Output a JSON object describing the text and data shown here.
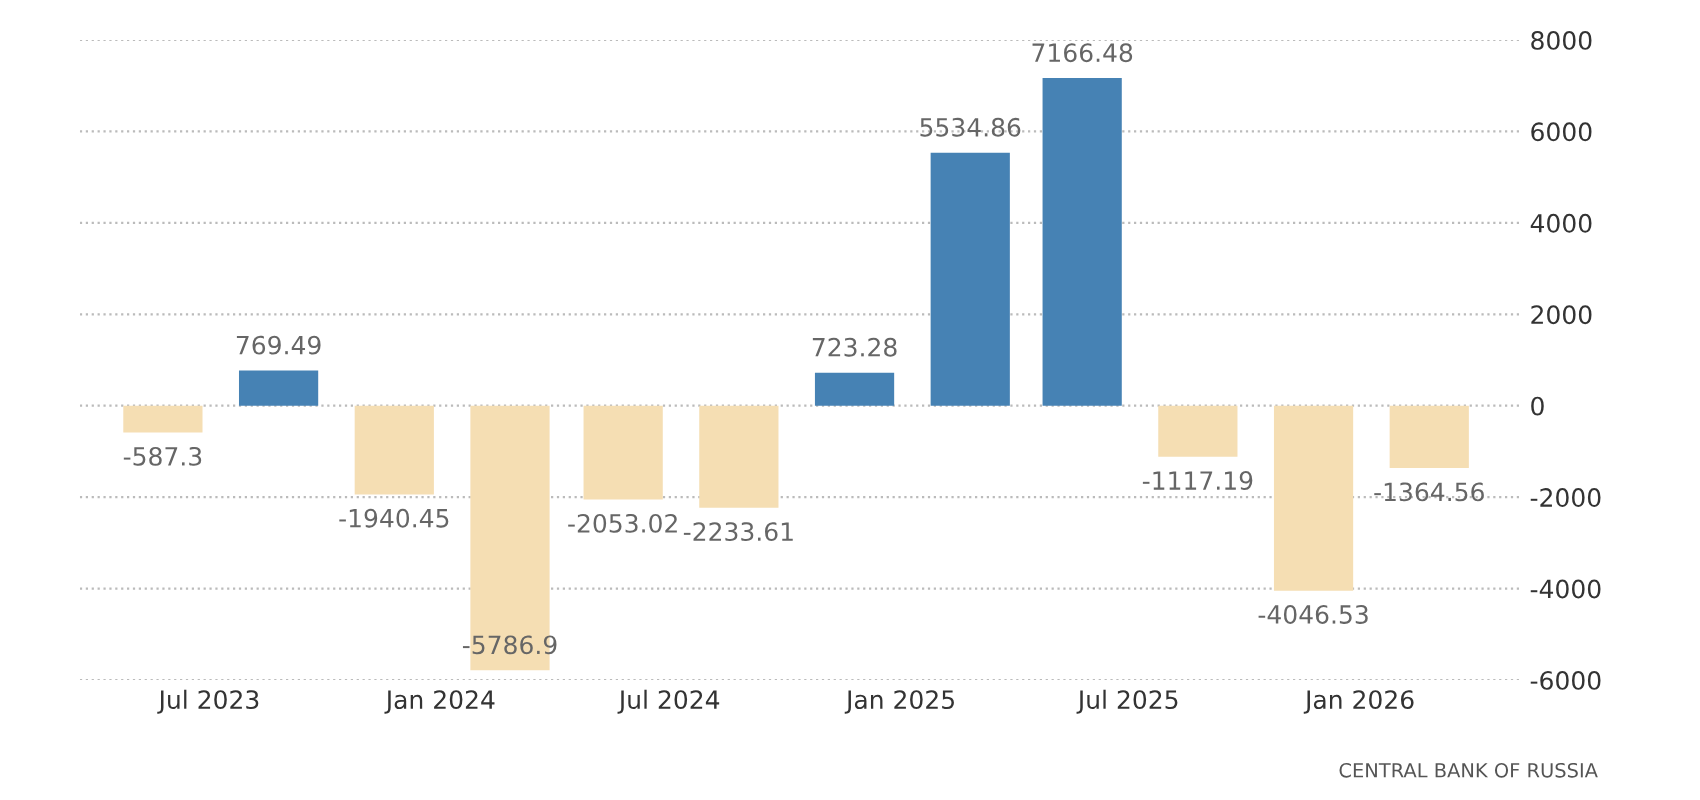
{
  "chart_data": {
    "type": "bar",
    "x": [
      "2023-05-25",
      "2023-08-25",
      "2023-11-25",
      "2024-02-25",
      "2024-05-25",
      "2024-08-25",
      "2024-11-25",
      "2025-02-25",
      "2025-05-25",
      "2025-08-25",
      "2025-11-25",
      "2026-02-25"
    ],
    "values": [
      -587.3,
      769.49,
      -1940.45,
      -5786.9,
      -2053.02,
      -2233.61,
      723.28,
      5534.86,
      7166.48,
      -1117.19,
      -4046.53,
      -1364.56
    ],
    "colors": [
      "#f5deb3",
      "#4682b4",
      "#f5deb3",
      "#f5deb3",
      "#f5deb3",
      "#f5deb3",
      "#4682b4",
      "#4682b4",
      "#4682b4",
      "#f5deb3",
      "#f5deb3",
      "#f5deb3"
    ],
    "data_labels": true,
    "xlim": [
      "2023-03-20",
      "2026-05-08"
    ],
    "xticks": [
      {
        "value": "2023-07-01",
        "label": "Jul 2023"
      },
      {
        "value": "2024-01-01",
        "label": "Jan 2024"
      },
      {
        "value": "2024-07-01",
        "label": "Jul 2024"
      },
      {
        "value": "2025-01-01",
        "label": "Jan 2025"
      },
      {
        "value": "2025-07-01",
        "label": "Jul 2025"
      },
      {
        "value": "2026-01-01",
        "label": "Jan 2026"
      }
    ],
    "ylim": [
      -6000,
      8000
    ],
    "yticks": [
      -6000,
      -4000,
      -2000,
      0,
      2000,
      4000,
      6000,
      8000
    ],
    "grid": "y",
    "legend": false,
    "annotations": [
      "CENTRAL BANK OF RUSSIA"
    ]
  }
}
